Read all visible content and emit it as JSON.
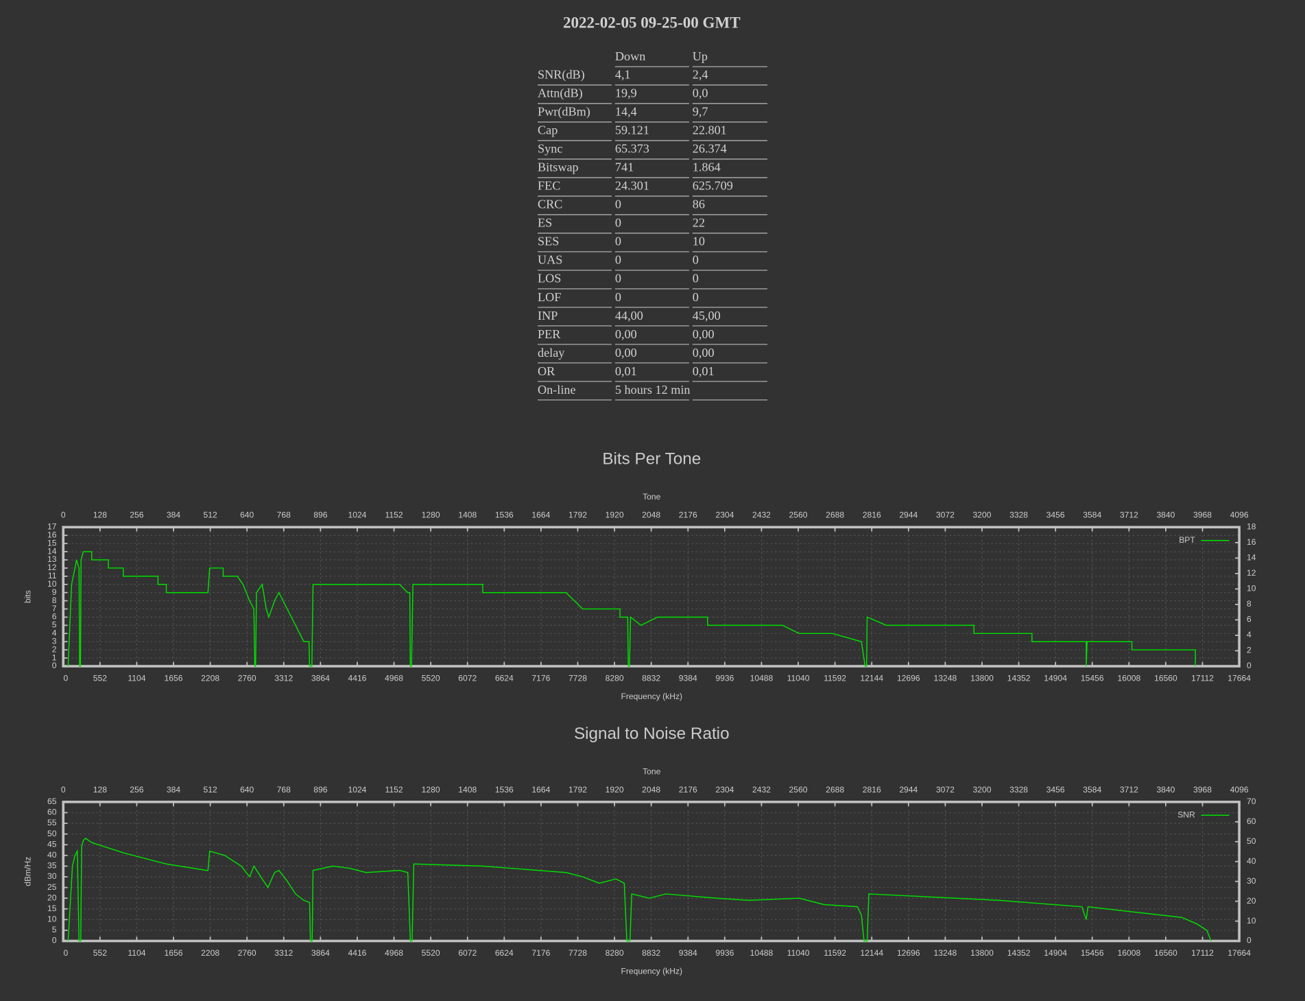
{
  "header": {
    "title": "2022-02-05 09-25-00 GMT"
  },
  "table": {
    "columns": [
      "Down",
      "Up"
    ],
    "rows": [
      [
        "SNR(dB)",
        "4,1",
        "2,4"
      ],
      [
        "Attn(dB)",
        "19,9",
        "0,0"
      ],
      [
        "Pwr(dBm)",
        "14,4",
        "9,7"
      ],
      [
        "Cap",
        "59.121",
        "22.801"
      ],
      [
        "Sync",
        "65.373",
        "26.374"
      ],
      [
        "Bitswap",
        "741",
        "1.864"
      ],
      [
        "FEC",
        "24.301",
        "625.709"
      ],
      [
        "CRC",
        "0",
        "86"
      ],
      [
        "ES",
        "0",
        "22"
      ],
      [
        "SES",
        "0",
        "10"
      ],
      [
        "UAS",
        "0",
        "0"
      ],
      [
        "LOS",
        "0",
        "0"
      ],
      [
        "LOF",
        "0",
        "0"
      ],
      [
        "INP",
        "44,00",
        "45,00"
      ],
      [
        "PER",
        "0,00",
        "0,00"
      ],
      [
        "delay",
        "0,00",
        "0,00"
      ],
      [
        "OR",
        "0,01",
        "0,01"
      ],
      [
        "On-line",
        "5 hours 12 min"
      ]
    ]
  },
  "chart_data": [
    {
      "type": "line",
      "title": "Bits Per Tone",
      "xlabel": "Tone",
      "x2label": "Frequency (kHz)",
      "ylabel": "bits",
      "xlim": [
        0,
        4096
      ],
      "xticks": [
        0,
        128,
        256,
        384,
        512,
        640,
        768,
        896,
        1024,
        1152,
        1280,
        1408,
        1536,
        1664,
        1792,
        1920,
        2048,
        2176,
        2304,
        2432,
        2560,
        2688,
        2816,
        2944,
        3072,
        3200,
        3328,
        3456,
        3584,
        3712,
        3840,
        3968,
        4096
      ],
      "x2lim": [
        0,
        17664
      ],
      "x2ticks": [
        0,
        552,
        1104,
        1656,
        2208,
        2760,
        3312,
        3864,
        4416,
        4968,
        5520,
        6072,
        6624,
        7176,
        7728,
        8280,
        8832,
        9384,
        9936,
        10488,
        11040,
        11592,
        12144,
        12696,
        13248,
        13800,
        14352,
        14904,
        15456,
        16008,
        16560,
        17112,
        17664
      ],
      "ylim": [
        0,
        17
      ],
      "yticks": [
        0,
        1,
        2,
        3,
        4,
        5,
        6,
        7,
        8,
        9,
        10,
        11,
        12,
        13,
        14,
        15,
        16,
        17
      ],
      "y2lim": [
        0,
        18
      ],
      "y2ticks": [
        0,
        2,
        4,
        6,
        8,
        10,
        12,
        14,
        16,
        18
      ],
      "grid": true,
      "legend": "top-right",
      "x": [
        17,
        29,
        41,
        46,
        55,
        57,
        60,
        62,
        70,
        99,
        99,
        157,
        157,
        209,
        209,
        330,
        330,
        359,
        359,
        504,
        510,
        557,
        557,
        606,
        626,
        649,
        664,
        667,
        670,
        673,
        693,
        707,
        716,
        736,
        751,
        780,
        809,
        838,
        856,
        858,
        866,
        870,
        1171,
        1200,
        1207,
        1209,
        1213,
        1218,
        1461,
        1461,
        1751,
        1780,
        1809,
        1939,
        1939,
        1966,
        1968,
        1972,
        1976,
        2012,
        2070,
        2244,
        2244,
        2505,
        2563,
        2679,
        2780,
        2793,
        2798,
        2800,
        2867,
        3172,
        3172,
        3374,
        3374,
        3563,
        3563,
        3566,
        3722,
        3722,
        3943,
        3943
      ],
      "series": [
        {
          "name": "BPT",
          "color": "#00e000",
          "values": [
            0,
            10,
            12,
            13,
            12,
            0,
            0,
            13,
            14,
            14,
            13,
            13,
            12,
            12,
            11,
            11,
            10,
            10,
            9,
            9,
            12,
            12,
            11,
            11,
            10,
            8,
            7,
            0,
            0,
            9,
            10,
            7,
            6,
            8,
            9,
            7,
            5,
            3,
            3,
            0,
            0,
            10,
            10,
            9,
            9,
            0,
            0,
            10,
            10,
            9,
            9,
            8,
            7,
            7,
            6,
            6,
            0,
            0,
            6,
            5,
            6,
            6,
            5,
            5,
            4,
            4,
            3,
            0,
            0,
            6,
            5,
            5,
            4,
            4,
            3,
            3,
            0,
            3,
            3,
            2,
            2,
            0
          ]
        }
      ]
    },
    {
      "type": "line",
      "title": "Signal to Noise Ratio",
      "xlabel": "Tone",
      "x2label": "Frequency (kHz)",
      "ylabel": "dBm/Hz",
      "xlim": [
        0,
        4096
      ],
      "xticks": [
        0,
        128,
        256,
        384,
        512,
        640,
        768,
        896,
        1024,
        1152,
        1280,
        1408,
        1536,
        1664,
        1792,
        1920,
        2048,
        2176,
        2304,
        2432,
        2560,
        2688,
        2816,
        2944,
        3072,
        3200,
        3328,
        3456,
        3584,
        3712,
        3840,
        3968,
        4096
      ],
      "x2lim": [
        0,
        17664
      ],
      "x2ticks": [
        0,
        552,
        1104,
        1656,
        2208,
        2760,
        3312,
        3864,
        4416,
        4968,
        5520,
        6072,
        6624,
        7176,
        7728,
        8280,
        8832,
        9384,
        9936,
        10488,
        11040,
        11592,
        12144,
        12696,
        13248,
        13800,
        14352,
        14904,
        15456,
        16008,
        16560,
        17112,
        17664
      ],
      "ylim": [
        0,
        65
      ],
      "yticks": [
        0,
        5,
        10,
        15,
        20,
        25,
        30,
        35,
        40,
        45,
        50,
        55,
        60,
        65
      ],
      "y2lim": [
        0,
        70
      ],
      "y2ticks": [
        0,
        10,
        20,
        30,
        40,
        50,
        60,
        70
      ],
      "grid": true,
      "legend": "top-right",
      "x": [
        17,
        32,
        41,
        49,
        55,
        61,
        64,
        70,
        78,
        99,
        215,
        359,
        499,
        504,
        510,
        562,
        620,
        649,
        664,
        693,
        713,
        736,
        751,
        780,
        809,
        838,
        858,
        861,
        867,
        870,
        939,
        997,
        1055,
        1171,
        1200,
        1209,
        1215,
        1221,
        1461,
        1751,
        1809,
        1867,
        1925,
        1954,
        1963,
        1974,
        1980,
        2041,
        2099,
        2186,
        2273,
        2389,
        2563,
        2650,
        2766,
        2780,
        2789,
        2800,
        2806,
        3258,
        3548,
        3563,
        3569,
        3896,
        3948,
        3983,
        3998
      ],
      "series": [
        {
          "name": "SNR",
          "color": "#00e000",
          "values": [
            0,
            35,
            40,
            42,
            0,
            0,
            44,
            47,
            48,
            46,
            41,
            36,
            33,
            33,
            42,
            40,
            35,
            30,
            35,
            29,
            25,
            32,
            33,
            28,
            22,
            19,
            18,
            0,
            0,
            33,
            35,
            34,
            32,
            33,
            32,
            0,
            0,
            36,
            35,
            32,
            30,
            27,
            29,
            27,
            0,
            0,
            22,
            20,
            22,
            21,
            20,
            19,
            20,
            17,
            16,
            12,
            0,
            0,
            22,
            19,
            16,
            10,
            16,
            11,
            8,
            5,
            0
          ]
        }
      ]
    }
  ]
}
